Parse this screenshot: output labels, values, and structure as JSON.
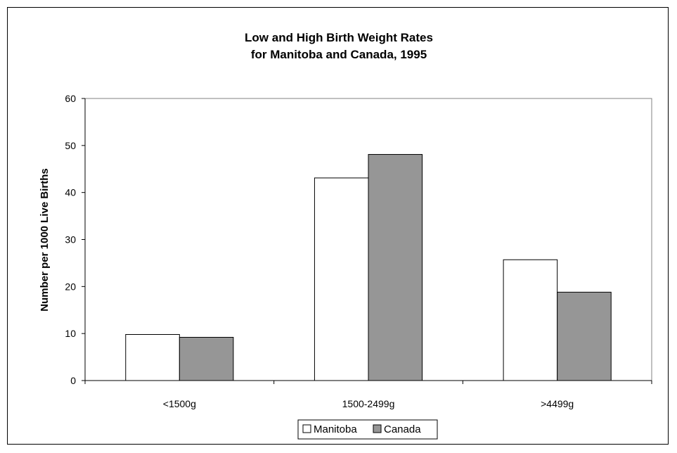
{
  "chart_data": {
    "type": "bar",
    "title_lines": [
      "Low and High Birth Weight Rates",
      "for Manitoba and Canada, 1995"
    ],
    "xlabel": "",
    "ylabel": "Number per 1000 Live Births",
    "categories": [
      "<1500g",
      "1500-2499g",
      ">4499g"
    ],
    "ylim": [
      0,
      60
    ],
    "yticks": [
      0,
      10,
      20,
      30,
      40,
      50,
      60
    ],
    "grid": false,
    "legend_position": "bottom-center",
    "series": [
      {
        "name": "Manitoba",
        "values": [
          9.8,
          43.1,
          25.7
        ],
        "color": "#ffffff"
      },
      {
        "name": "Canada",
        "values": [
          9.2,
          48.1,
          18.8
        ],
        "color": "#969696"
      }
    ]
  }
}
